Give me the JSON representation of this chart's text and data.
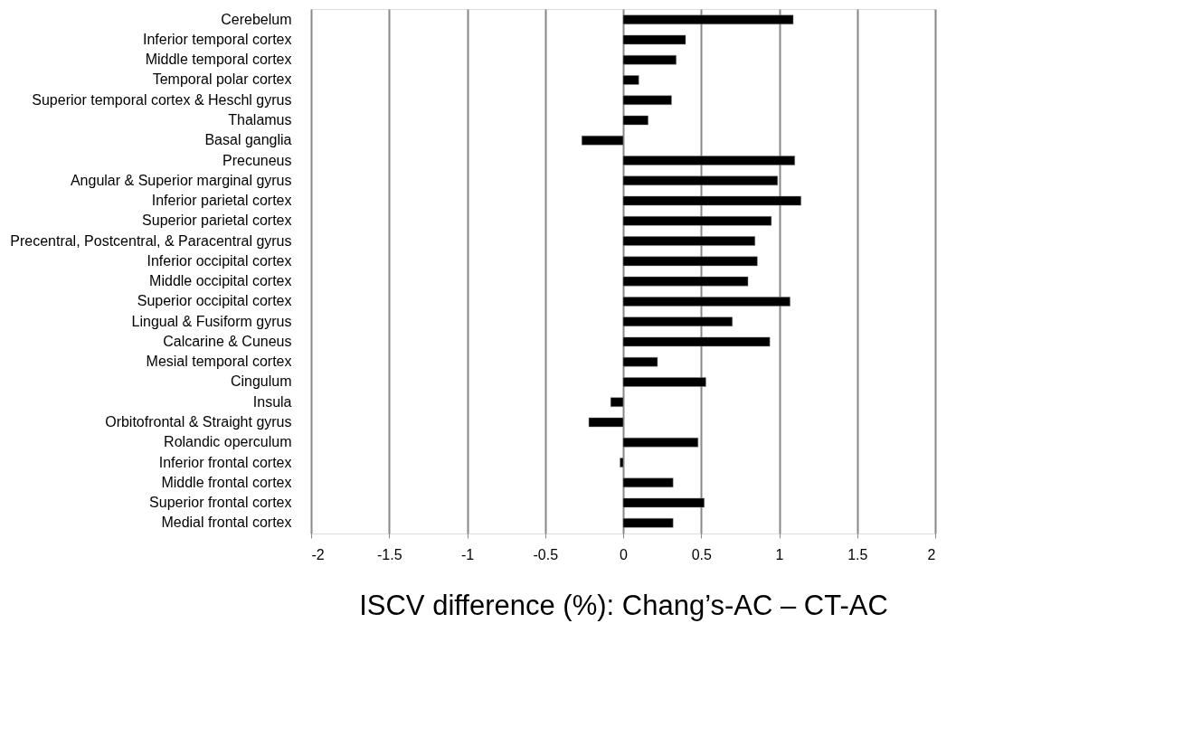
{
  "chart_data": {
    "type": "bar",
    "orientation": "horizontal",
    "xlabel": "ISCV difference (%): Chang’s-AC – CT-AC",
    "categories": [
      "Cerebelum",
      "Inferior temporal cortex",
      "Middle temporal cortex",
      "Temporal polar cortex",
      "Superior temporal cortex & Heschl gyrus",
      "Thalamus",
      "Basal ganglia",
      "Precuneus",
      "Angular & Superior marginal gyrus",
      "Inferior parietal cortex",
      "Superior parietal cortex",
      "Precentral, Postcentral, & Paracentral gyrus",
      "Inferior occipital cortex",
      "Middle occipital cortex",
      "Superior occipital cortex",
      "Lingual & Fusiform gyrus",
      "Calcarine & Cuneus",
      "Mesial temporal cortex",
      "Cingulum",
      "Insula",
      "Orbitofrontal & Straight gyrus",
      "Rolandic operculum",
      "Inferior frontal cortex",
      "Middle frontal cortex",
      "Superior frontal cortex",
      "Medial frontal cortex"
    ],
    "values": [
      1.09,
      0.4,
      0.34,
      0.1,
      0.31,
      0.16,
      -0.265,
      1.1,
      0.99,
      1.14,
      0.95,
      0.845,
      0.86,
      0.8,
      1.07,
      0.7,
      0.94,
      0.22,
      0.53,
      -0.08,
      -0.22,
      0.48,
      -0.02,
      0.32,
      0.52,
      0.32
    ],
    "color": "#000000",
    "xlim": [
      -2,
      2
    ],
    "xticks": [
      -2,
      -1.5,
      -1,
      -0.5,
      0,
      0.5,
      1,
      1.5,
      2
    ],
    "grid": "x"
  }
}
